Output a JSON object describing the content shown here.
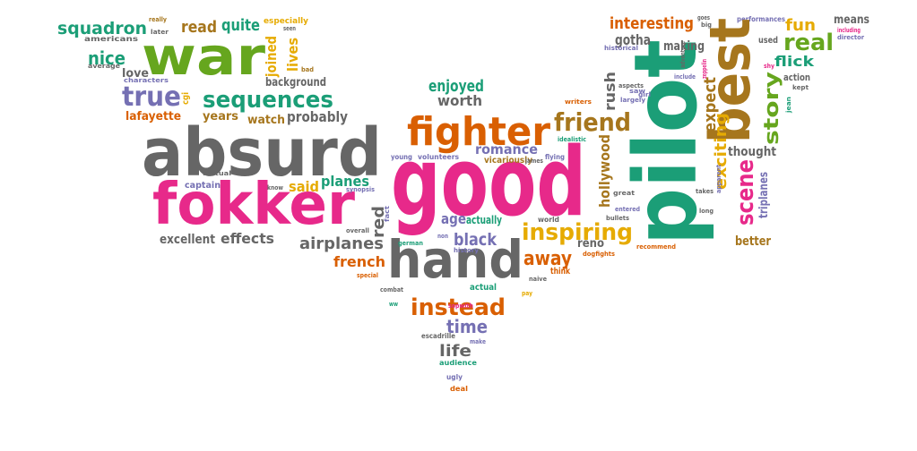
{
  "colors": {
    "green": "#1b9e77",
    "orange": "#d95f02",
    "purple": "#7570b3",
    "pink": "#e7298a",
    "lime": "#66a61e",
    "gold": "#e6ab02",
    "brown": "#a6761d",
    "gray": "#666666"
  },
  "words": [
    {
      "text": "war",
      "color": "lime"
    },
    {
      "text": "squadron",
      "color": "green"
    },
    {
      "text": "americans",
      "color": "gray"
    },
    {
      "text": "really",
      "color": "brown"
    },
    {
      "text": "later",
      "color": "gray"
    },
    {
      "text": "read",
      "color": "brown"
    },
    {
      "text": "quite",
      "color": "green"
    },
    {
      "text": "especially",
      "color": "gold"
    },
    {
      "text": "seen",
      "color": "gray"
    },
    {
      "text": "joined",
      "color": "gold"
    },
    {
      "text": "lives",
      "color": "gold"
    },
    {
      "text": "nice",
      "color": "green"
    },
    {
      "text": "average",
      "color": "gray"
    },
    {
      "text": "love",
      "color": "gray"
    },
    {
      "text": "characters",
      "color": "purple"
    },
    {
      "text": "bad",
      "color": "brown"
    },
    {
      "text": "background",
      "color": "gray"
    },
    {
      "text": "true",
      "color": "purple"
    },
    {
      "text": "cgi",
      "color": "gold"
    },
    {
      "text": "sequences",
      "color": "green"
    },
    {
      "text": "lafayette",
      "color": "orange"
    },
    {
      "text": "years",
      "color": "brown"
    },
    {
      "text": "watch",
      "color": "brown"
    },
    {
      "text": "probably",
      "color": "gray"
    },
    {
      "text": "absurd",
      "color": "gray"
    },
    {
      "text": "fokker",
      "color": "pink"
    },
    {
      "text": "factual",
      "color": "gray"
    },
    {
      "text": "captain",
      "color": "purple"
    },
    {
      "text": "know",
      "color": "gray"
    },
    {
      "text": "said",
      "color": "gold"
    },
    {
      "text": "planes",
      "color": "green"
    },
    {
      "text": "synopsis",
      "color": "purple"
    },
    {
      "text": "excellent",
      "color": "gray"
    },
    {
      "text": "effects",
      "color": "gray"
    },
    {
      "text": "airplanes",
      "color": "gray"
    },
    {
      "text": "red",
      "color": "gray"
    },
    {
      "text": "fact",
      "color": "purple"
    },
    {
      "text": "overall",
      "color": "gray"
    },
    {
      "text": "french",
      "color": "orange"
    },
    {
      "text": "special",
      "color": "orange"
    },
    {
      "text": "combat",
      "color": "gray"
    },
    {
      "text": "ww",
      "color": "green"
    },
    {
      "text": "good",
      "color": "pink"
    },
    {
      "text": "hand",
      "color": "gray"
    },
    {
      "text": "fighter",
      "color": "orange"
    },
    {
      "text": "friend",
      "color": "brown"
    },
    {
      "text": "enjoyed",
      "color": "green"
    },
    {
      "text": "worth",
      "color": "gray"
    },
    {
      "text": "romance",
      "color": "purple"
    },
    {
      "text": "vicariously",
      "color": "brown"
    },
    {
      "text": "young",
      "color": "purple"
    },
    {
      "text": "volunteers",
      "color": "purple"
    },
    {
      "text": "age",
      "color": "purple"
    },
    {
      "text": "actually",
      "color": "green"
    },
    {
      "text": "black",
      "color": "purple"
    },
    {
      "text": "german",
      "color": "green"
    },
    {
      "text": "non",
      "color": "purple"
    },
    {
      "text": "history",
      "color": "purple"
    },
    {
      "text": "pilot",
      "color": "green"
    },
    {
      "text": "inspiring",
      "color": "gold"
    },
    {
      "text": "away",
      "color": "orange"
    },
    {
      "text": "think",
      "color": "orange"
    },
    {
      "text": "naive",
      "color": "gray"
    },
    {
      "text": "pay",
      "color": "gold"
    },
    {
      "text": "reno",
      "color": "gray"
    },
    {
      "text": "dogfights",
      "color": "orange"
    },
    {
      "text": "instead",
      "color": "orange"
    },
    {
      "text": "time",
      "color": "purple"
    },
    {
      "text": "actual",
      "color": "green"
    },
    {
      "text": "sopwith",
      "color": "pink"
    },
    {
      "text": "escadrille",
      "color": "gray"
    },
    {
      "text": "make",
      "color": "purple"
    },
    {
      "text": "life",
      "color": "gray"
    },
    {
      "text": "audience",
      "color": "green"
    },
    {
      "text": "ugly",
      "color": "purple"
    },
    {
      "text": "deal",
      "color": "orange"
    },
    {
      "text": "interesting",
      "color": "orange"
    },
    {
      "text": "goes",
      "color": "gray"
    },
    {
      "text": "big",
      "color": "gray"
    },
    {
      "text": "performances",
      "color": "purple"
    },
    {
      "text": "fun",
      "color": "gold"
    },
    {
      "text": "means",
      "color": "gray"
    },
    {
      "text": "including",
      "color": "pink"
    },
    {
      "text": "director",
      "color": "purple"
    },
    {
      "text": "best",
      "color": "brown"
    },
    {
      "text": "real",
      "color": "lime"
    },
    {
      "text": "flick",
      "color": "green"
    },
    {
      "text": "gotha",
      "color": "gray"
    },
    {
      "text": "historical",
      "color": "purple"
    },
    {
      "text": "making",
      "color": "gray"
    },
    {
      "text": "used",
      "color": "gray"
    },
    {
      "text": "rush",
      "color": "gray"
    },
    {
      "text": "expect",
      "color": "brown"
    },
    {
      "text": "exciting",
      "color": "gold"
    },
    {
      "text": "scene",
      "color": "pink"
    },
    {
      "text": "story",
      "color": "lime"
    },
    {
      "text": "thought",
      "color": "gray"
    },
    {
      "text": "triplanes",
      "color": "purple"
    },
    {
      "text": "better",
      "color": "brown"
    },
    {
      "text": "hollywood",
      "color": "brown"
    },
    {
      "text": "writers",
      "color": "orange"
    },
    {
      "text": "aspects",
      "color": "gray"
    },
    {
      "text": "saw",
      "color": "purple"
    },
    {
      "text": "largely",
      "color": "purple"
    },
    {
      "text": "include",
      "color": "purple"
    },
    {
      "text": "idealistic",
      "color": "green"
    },
    {
      "text": "flying",
      "color": "purple"
    },
    {
      "text": "james",
      "color": "gray"
    },
    {
      "text": "great",
      "color": "gray"
    },
    {
      "text": "takes",
      "color": "gray"
    },
    {
      "text": "long",
      "color": "gray"
    },
    {
      "text": "entered",
      "color": "purple"
    },
    {
      "text": "bullets",
      "color": "gray"
    },
    {
      "text": "world",
      "color": "gray"
    },
    {
      "text": "recommend",
      "color": "orange"
    },
    {
      "text": "action",
      "color": "gray"
    },
    {
      "text": "kept",
      "color": "gray"
    },
    {
      "text": "jean",
      "color": "green"
    },
    {
      "text": "shy",
      "color": "pink"
    },
    {
      "text": "adventure",
      "color": "gray"
    },
    {
      "text": "girl",
      "color": "purple"
    },
    {
      "text": "apparent",
      "color": "purple"
    },
    {
      "text": "zeppelin",
      "color": "pink"
    }
  ]
}
